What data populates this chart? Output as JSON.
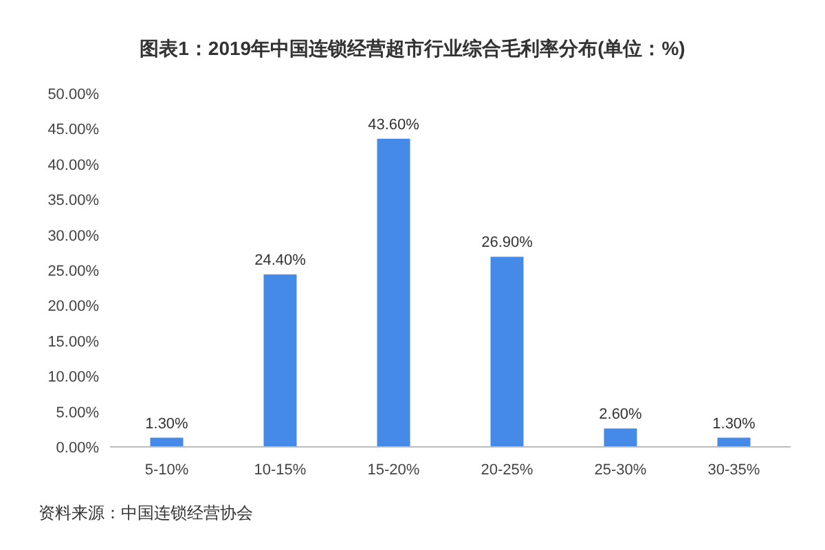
{
  "chart_data": {
    "type": "bar",
    "title": "图表1：2019年中国连锁经营超市行业综合毛利率分布(单位：%)",
    "categories": [
      "5-10%",
      "10-15%",
      "15-20%",
      "20-25%",
      "25-30%",
      "30-35%"
    ],
    "values": [
      1.3,
      24.4,
      43.6,
      26.9,
      2.6,
      1.3
    ],
    "value_labels": [
      "1.30%",
      "24.40%",
      "43.60%",
      "26.90%",
      "2.60%",
      "1.30%"
    ],
    "color": "#448ae6",
    "ylim": [
      0,
      50
    ],
    "yticks": [
      {
        "value": 0,
        "label": "0.00%"
      },
      {
        "value": 5,
        "label": "5.00%"
      },
      {
        "value": 10,
        "label": "10.00%"
      },
      {
        "value": 15,
        "label": "15.00%"
      },
      {
        "value": 20,
        "label": "20.00%"
      },
      {
        "value": 25,
        "label": "25.00%"
      },
      {
        "value": 30,
        "label": "30.00%"
      },
      {
        "value": 35,
        "label": "35.00%"
      },
      {
        "value": 40,
        "label": "40.00%"
      },
      {
        "value": 45,
        "label": "45.00%"
      },
      {
        "value": 50,
        "label": "50.00%"
      }
    ],
    "annotations": [
      "资料来源：中国连锁经营协会"
    ]
  }
}
